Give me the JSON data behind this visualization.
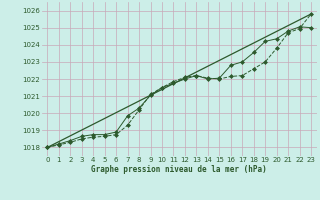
{
  "title": "Graphe pression niveau de la mer (hPa)",
  "background_color": "#cceee8",
  "grid_color": "#c8a8b8",
  "line_color": "#2d5a2d",
  "xlim": [
    -0.5,
    23.5
  ],
  "ylim": [
    1017.5,
    1026.5
  ],
  "yticks": [
    1018,
    1019,
    1020,
    1021,
    1022,
    1023,
    1024,
    1025,
    1026
  ],
  "xticks": [
    0,
    1,
    2,
    3,
    4,
    5,
    6,
    7,
    8,
    9,
    10,
    11,
    12,
    13,
    14,
    15,
    16,
    17,
    18,
    19,
    20,
    21,
    22,
    23
  ],
  "series1_x": [
    0,
    1,
    2,
    3,
    4,
    5,
    6,
    7,
    8,
    9,
    10,
    11,
    12,
    13,
    14,
    15,
    16,
    17,
    18,
    19,
    20,
    21,
    22,
    23
  ],
  "series1_y": [
    1018.0,
    1018.15,
    1018.3,
    1018.5,
    1018.6,
    1018.65,
    1018.75,
    1019.3,
    1020.2,
    1021.1,
    1021.5,
    1021.85,
    1022.1,
    1022.2,
    1022.05,
    1022.0,
    1022.15,
    1022.2,
    1022.6,
    1023.0,
    1023.8,
    1024.7,
    1024.95,
    1025.8
  ],
  "series2_x": [
    0,
    1,
    2,
    3,
    4,
    5,
    6,
    7,
    8,
    9,
    10,
    11,
    12,
    13,
    14,
    15,
    16,
    17,
    18,
    19,
    20,
    21,
    22,
    23
  ],
  "series2_y": [
    1018.0,
    1018.2,
    1018.4,
    1018.65,
    1018.75,
    1018.75,
    1018.9,
    1019.85,
    1020.3,
    1021.05,
    1021.5,
    1021.75,
    1022.0,
    1022.2,
    1022.0,
    1022.05,
    1022.8,
    1023.0,
    1023.55,
    1024.2,
    1024.35,
    1024.8,
    1025.05,
    1025.0
  ],
  "trend_x": [
    0,
    23
  ],
  "trend_y": [
    1018.0,
    1025.8
  ]
}
